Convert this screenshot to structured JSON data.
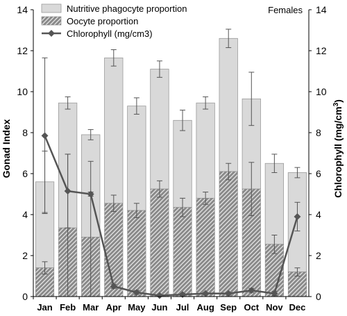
{
  "chart_data": {
    "type": "bar",
    "annotation": "Females",
    "categories": [
      "Jan",
      "Feb",
      "Mar",
      "Apr",
      "May",
      "Jun",
      "Jul",
      "Aug",
      "Sep",
      "Oct",
      "Nov",
      "Dec"
    ],
    "ylabel": "Gonad Index",
    "y2label_main": "Chlorophyll (mg/cm",
    "y2label_sup": "3",
    "y2label_end": ")",
    "ylim": [
      0,
      14
    ],
    "y2lim": [
      0,
      14
    ],
    "yticks": [
      "0",
      "2",
      "4",
      "6",
      "8",
      "10",
      "12",
      "14"
    ],
    "y2ticks": [
      "0",
      "2",
      "4",
      "6",
      "8",
      "10",
      "12",
      "14"
    ],
    "grid": false,
    "legend_position": "top-left",
    "series": [
      {
        "name": "Nutritive phagocyte proportion",
        "kind": "stacked-bar-total",
        "values": [
          5.6,
          9.45,
          7.9,
          11.65,
          9.3,
          11.1,
          8.6,
          9.45,
          12.6,
          9.65,
          6.5,
          6.05
        ],
        "error": [
          1.5,
          0.3,
          0.25,
          0.4,
          0.4,
          0.4,
          0.5,
          0.3,
          0.45,
          1.3,
          0.45,
          0.25
        ],
        "color": "#d9d9d9"
      },
      {
        "name": "Oocyte proportion",
        "kind": "stacked-bar-lower",
        "values": [
          1.4,
          3.35,
          2.9,
          4.55,
          4.2,
          5.25,
          4.35,
          4.8,
          6.1,
          5.25,
          2.55,
          1.2
        ],
        "error": [
          0.3,
          3.6,
          3.7,
          0.4,
          0.35,
          0.4,
          0.45,
          0.3,
          0.4,
          1.3,
          0.45,
          0.2
        ],
        "color": "#777777"
      },
      {
        "name": "Chlorophyll (mg/cm3)",
        "kind": "line",
        "values": [
          7.85,
          5.15,
          5.0,
          0.5,
          0.2,
          0.05,
          0.1,
          0.15,
          0.15,
          0.3,
          0.15,
          3.9
        ],
        "error": [
          3.8,
          1.8,
          0.1,
          0.1,
          0.1,
          0.05,
          0.05,
          0.05,
          0.05,
          0.1,
          0.1,
          0.7
        ],
        "color": "#555555"
      }
    ]
  }
}
